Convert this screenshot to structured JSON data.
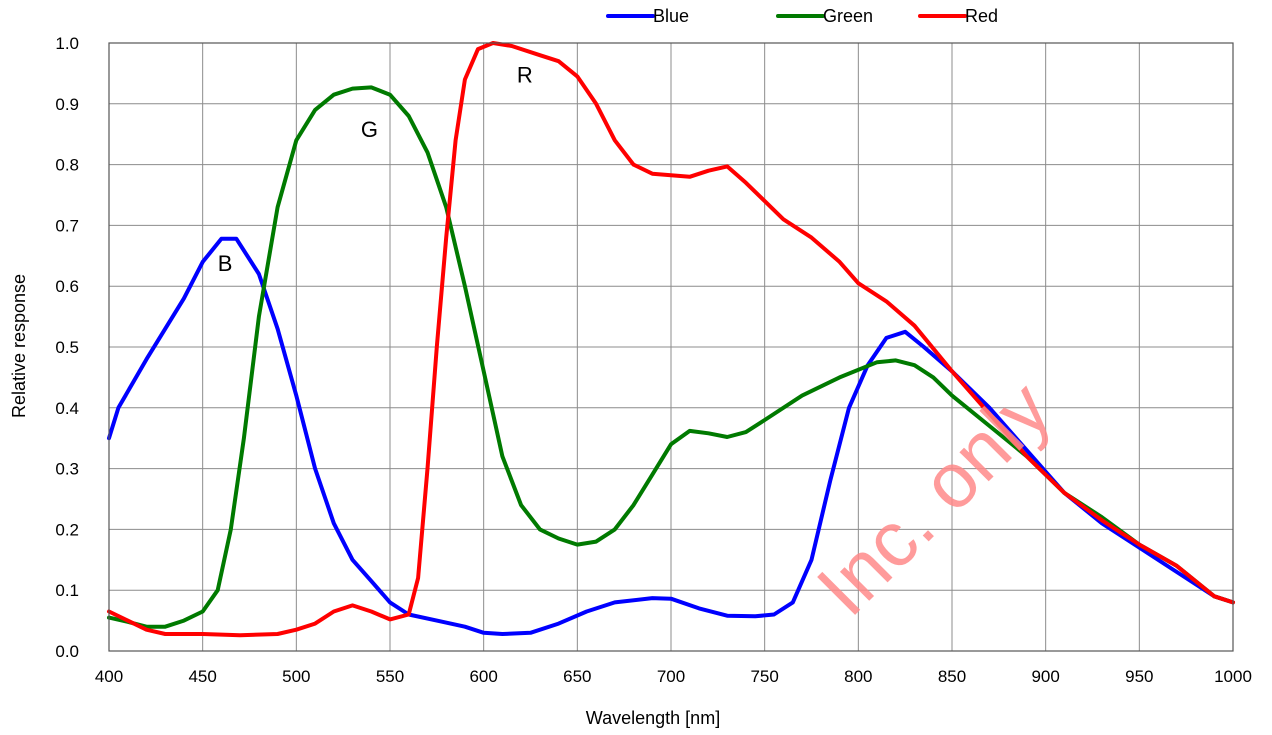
{
  "chart_data": {
    "type": "line",
    "title": "",
    "xlabel": "Wavelength [nm]",
    "ylabel": "Relative response",
    "xlim": [
      400,
      1000
    ],
    "ylim": [
      0.0,
      1.0
    ],
    "x_ticks": [
      "400",
      "450",
      "500",
      "550",
      "600",
      "650",
      "700",
      "750",
      "800",
      "850",
      "900",
      "950",
      "1000"
    ],
    "y_ticks": [
      "0.0",
      "0.1",
      "0.2",
      "0.3",
      "0.4",
      "0.5",
      "0.6",
      "0.7",
      "0.8",
      "0.9",
      "1.0"
    ],
    "grid": true,
    "legend_position": "top-right",
    "series": [
      {
        "name": "Blue",
        "color": "#0000ff",
        "points": [
          [
            400,
            0.35
          ],
          [
            405,
            0.4
          ],
          [
            420,
            0.48
          ],
          [
            440,
            0.58
          ],
          [
            450,
            0.64
          ],
          [
            460,
            0.678
          ],
          [
            468,
            0.678
          ],
          [
            480,
            0.62
          ],
          [
            490,
            0.53
          ],
          [
            500,
            0.42
          ],
          [
            510,
            0.3
          ],
          [
            520,
            0.21
          ],
          [
            530,
            0.15
          ],
          [
            540,
            0.115
          ],
          [
            550,
            0.08
          ],
          [
            560,
            0.06
          ],
          [
            575,
            0.05
          ],
          [
            590,
            0.04
          ],
          [
            600,
            0.03
          ],
          [
            610,
            0.028
          ],
          [
            625,
            0.03
          ],
          [
            640,
            0.045
          ],
          [
            655,
            0.065
          ],
          [
            670,
            0.08
          ],
          [
            690,
            0.087
          ],
          [
            700,
            0.086
          ],
          [
            715,
            0.07
          ],
          [
            730,
            0.058
          ],
          [
            745,
            0.057
          ],
          [
            755,
            0.06
          ],
          [
            765,
            0.08
          ],
          [
            775,
            0.15
          ],
          [
            785,
            0.28
          ],
          [
            795,
            0.4
          ],
          [
            805,
            0.47
          ],
          [
            815,
            0.515
          ],
          [
            825,
            0.525
          ],
          [
            835,
            0.5
          ],
          [
            850,
            0.46
          ],
          [
            870,
            0.4
          ],
          [
            890,
            0.33
          ],
          [
            910,
            0.26
          ],
          [
            930,
            0.21
          ],
          [
            950,
            0.17
          ],
          [
            970,
            0.13
          ],
          [
            990,
            0.09
          ],
          [
            1000,
            0.08
          ]
        ]
      },
      {
        "name": "Green",
        "color": "#007a00",
        "points": [
          [
            400,
            0.055
          ],
          [
            410,
            0.048
          ],
          [
            420,
            0.04
          ],
          [
            430,
            0.04
          ],
          [
            440,
            0.05
          ],
          [
            450,
            0.065
          ],
          [
            458,
            0.1
          ],
          [
            465,
            0.2
          ],
          [
            472,
            0.35
          ],
          [
            480,
            0.55
          ],
          [
            490,
            0.73
          ],
          [
            500,
            0.84
          ],
          [
            510,
            0.89
          ],
          [
            520,
            0.915
          ],
          [
            530,
            0.925
          ],
          [
            540,
            0.927
          ],
          [
            550,
            0.915
          ],
          [
            560,
            0.88
          ],
          [
            570,
            0.82
          ],
          [
            580,
            0.73
          ],
          [
            590,
            0.6
          ],
          [
            600,
            0.46
          ],
          [
            610,
            0.32
          ],
          [
            620,
            0.24
          ],
          [
            630,
            0.2
          ],
          [
            640,
            0.185
          ],
          [
            650,
            0.175
          ],
          [
            660,
            0.18
          ],
          [
            670,
            0.2
          ],
          [
            680,
            0.24
          ],
          [
            690,
            0.29
          ],
          [
            700,
            0.34
          ],
          [
            710,
            0.362
          ],
          [
            720,
            0.358
          ],
          [
            730,
            0.352
          ],
          [
            740,
            0.36
          ],
          [
            750,
            0.38
          ],
          [
            770,
            0.42
          ],
          [
            790,
            0.45
          ],
          [
            810,
            0.475
          ],
          [
            820,
            0.478
          ],
          [
            830,
            0.47
          ],
          [
            840,
            0.45
          ],
          [
            850,
            0.42
          ],
          [
            870,
            0.37
          ],
          [
            890,
            0.32
          ],
          [
            910,
            0.26
          ],
          [
            930,
            0.22
          ],
          [
            950,
            0.175
          ],
          [
            970,
            0.14
          ],
          [
            990,
            0.09
          ],
          [
            1000,
            0.08
          ]
        ]
      },
      {
        "name": "Red",
        "color": "#ff0000",
        "points": [
          [
            400,
            0.065
          ],
          [
            410,
            0.05
          ],
          [
            420,
            0.035
          ],
          [
            430,
            0.028
          ],
          [
            450,
            0.028
          ],
          [
            470,
            0.026
          ],
          [
            490,
            0.028
          ],
          [
            500,
            0.035
          ],
          [
            510,
            0.045
          ],
          [
            520,
            0.065
          ],
          [
            530,
            0.075
          ],
          [
            540,
            0.065
          ],
          [
            550,
            0.052
          ],
          [
            560,
            0.06
          ],
          [
            565,
            0.12
          ],
          [
            570,
            0.3
          ],
          [
            575,
            0.5
          ],
          [
            580,
            0.68
          ],
          [
            585,
            0.84
          ],
          [
            590,
            0.94
          ],
          [
            597,
            0.99
          ],
          [
            605,
            1.0
          ],
          [
            615,
            0.995
          ],
          [
            630,
            0.98
          ],
          [
            640,
            0.97
          ],
          [
            650,
            0.945
          ],
          [
            660,
            0.9
          ],
          [
            670,
            0.84
          ],
          [
            680,
            0.8
          ],
          [
            690,
            0.785
          ],
          [
            710,
            0.78
          ],
          [
            720,
            0.79
          ],
          [
            730,
            0.797
          ],
          [
            740,
            0.77
          ],
          [
            750,
            0.74
          ],
          [
            760,
            0.71
          ],
          [
            775,
            0.68
          ],
          [
            790,
            0.64
          ],
          [
            800,
            0.605
          ],
          [
            815,
            0.575
          ],
          [
            830,
            0.535
          ],
          [
            850,
            0.46
          ],
          [
            870,
            0.39
          ],
          [
            890,
            0.32
          ],
          [
            910,
            0.26
          ],
          [
            930,
            0.215
          ],
          [
            950,
            0.175
          ],
          [
            970,
            0.14
          ],
          [
            990,
            0.09
          ],
          [
            1000,
            0.08
          ]
        ]
      }
    ],
    "annotations": [
      {
        "text": "B",
        "x": 462,
        "y": 0.625
      },
      {
        "text": "G",
        "x": 539,
        "y": 0.845
      },
      {
        "text": "R",
        "x": 622,
        "y": 0.935
      }
    ],
    "watermark": "Inc. only"
  }
}
